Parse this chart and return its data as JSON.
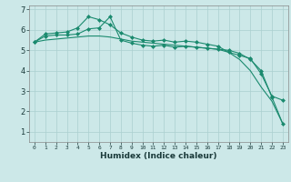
{
  "xlabel": "Humidex (Indice chaleur)",
  "ylabel": "",
  "x_values": [
    0,
    1,
    2,
    3,
    4,
    5,
    6,
    7,
    8,
    9,
    10,
    11,
    12,
    13,
    14,
    15,
    16,
    17,
    18,
    19,
    20,
    21,
    22,
    23
  ],
  "line1": [
    5.4,
    5.8,
    5.85,
    5.9,
    6.1,
    6.65,
    6.5,
    6.25,
    5.85,
    5.65,
    5.5,
    5.45,
    5.5,
    5.4,
    5.45,
    5.4,
    5.3,
    5.2,
    4.9,
    4.75,
    4.6,
    3.85,
    2.75,
    2.55
  ],
  "line2": [
    5.4,
    5.7,
    5.75,
    5.75,
    5.8,
    6.05,
    6.1,
    6.65,
    5.5,
    5.35,
    5.25,
    5.2,
    5.25,
    5.15,
    5.2,
    5.15,
    5.1,
    5.05,
    5.0,
    4.85,
    4.55,
    4.0,
    2.7,
    1.4
  ],
  "line3": [
    5.4,
    5.5,
    5.55,
    5.6,
    5.65,
    5.7,
    5.7,
    5.65,
    5.55,
    5.45,
    5.4,
    5.35,
    5.3,
    5.25,
    5.2,
    5.15,
    5.1,
    5.05,
    4.9,
    4.55,
    4.0,
    3.2,
    2.5,
    1.4
  ],
  "line_color": "#1a8a6e",
  "marker": "D",
  "marker_size": 2,
  "bg_color": "#cce8e8",
  "grid_color": "#aacfcf",
  "ylim": [
    0.5,
    7.2
  ],
  "xlim": [
    -0.5,
    23.5
  ],
  "yticks": [
    1,
    2,
    3,
    4,
    5,
    6,
    7
  ],
  "xticks": [
    0,
    1,
    2,
    3,
    4,
    5,
    6,
    7,
    8,
    9,
    10,
    11,
    12,
    13,
    14,
    15,
    16,
    17,
    18,
    19,
    20,
    21,
    22,
    23
  ]
}
